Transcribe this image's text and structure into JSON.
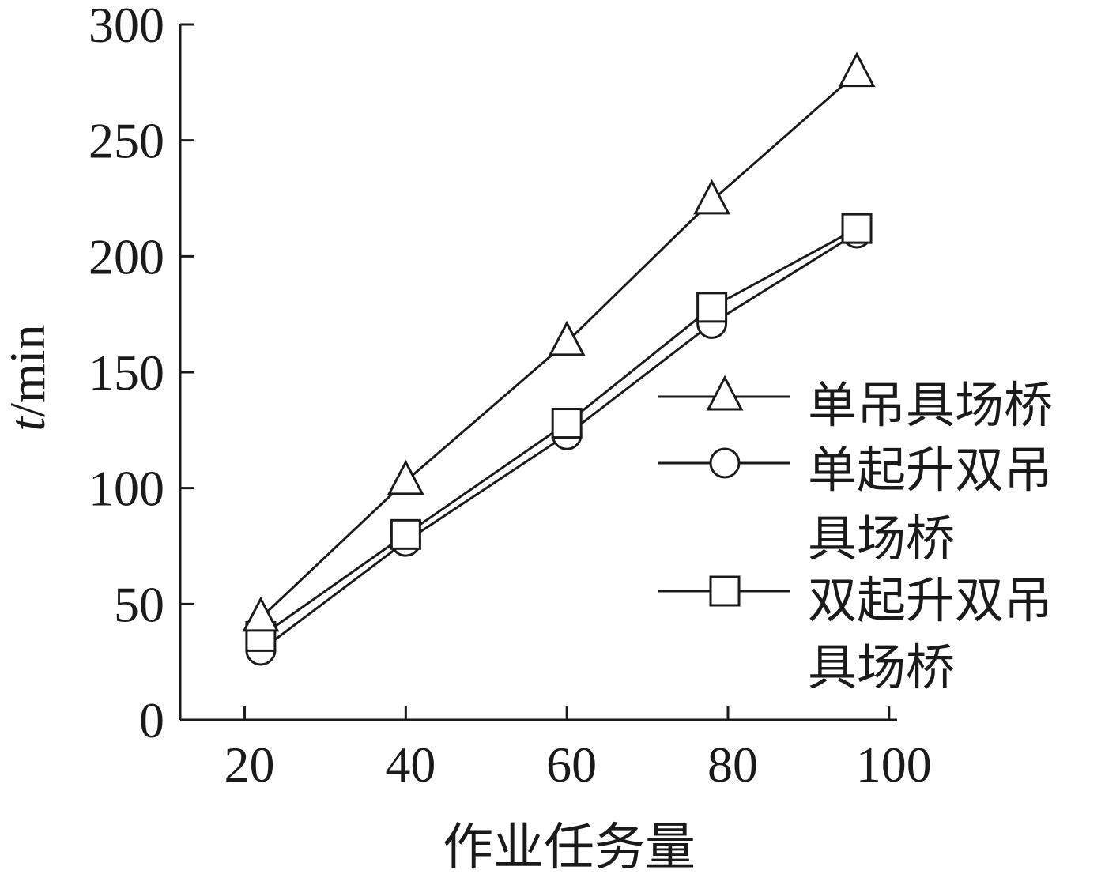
{
  "chart_data": {
    "type": "line",
    "title": "",
    "x_label": "作业任务量",
    "y_label": {
      "var": "t",
      "unit": "/min"
    },
    "x_ticks": [
      20,
      40,
      60,
      80,
      100
    ],
    "y_ticks": [
      0,
      50,
      100,
      150,
      200,
      250,
      300
    ],
    "xlim": [
      12,
      101
    ],
    "ylim": [
      0,
      300
    ],
    "grid": false,
    "legend_position": "right",
    "series": [
      {
        "name": "单吊具场桥",
        "legend_lines": [
          "单吊具场桥"
        ],
        "marker": "triangle",
        "color": "#1a1a1a",
        "x": [
          22,
          40,
          60,
          78,
          96
        ],
        "y": [
          44,
          103,
          163,
          224,
          279
        ]
      },
      {
        "name": "单起升双吊具场桥",
        "legend_lines": [
          "单起升双吊",
          "具场桥"
        ],
        "marker": "circle",
        "color": "#1a1a1a",
        "x": [
          22,
          40,
          60,
          78,
          96
        ],
        "y": [
          30,
          77,
          123,
          171,
          210
        ]
      },
      {
        "name": "双起升双吊具场桥",
        "legend_lines": [
          "双起升双吊",
          "具场桥"
        ],
        "marker": "square",
        "color": "#1a1a1a",
        "x": [
          22,
          40,
          60,
          78,
          96
        ],
        "y": [
          36,
          80,
          128,
          178,
          212
        ]
      }
    ]
  }
}
